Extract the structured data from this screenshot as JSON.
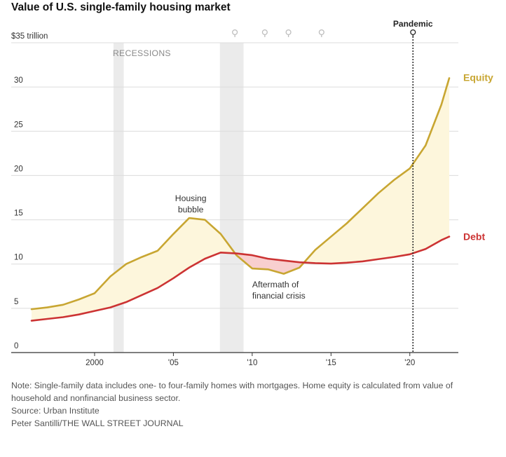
{
  "chart_data": {
    "type": "area",
    "title": "Value of U.S. single-family housing market",
    "y_unit": "$35 trillion",
    "x_range": [
      1996,
      2022.7
    ],
    "ylim": [
      0,
      35
    ],
    "y_ticks": [
      0,
      5,
      10,
      15,
      20,
      25,
      30
    ],
    "x_ticks": [
      2000,
      2005,
      2010,
      2015,
      2020
    ],
    "x_tick_labels": [
      "2000",
      "'05",
      "'10",
      "'15",
      "'20"
    ],
    "grid": true,
    "series": [
      {
        "name": "Equity",
        "color": "#c8a632",
        "x": [
          1996,
          1997,
          1998,
          1999,
          2000,
          2001,
          2002,
          2003,
          2004,
          2005,
          2006,
          2007,
          2008,
          2009,
          2010,
          2011,
          2012,
          2013,
          2014,
          2015,
          2016,
          2017,
          2018,
          2019,
          2020,
          2021,
          2022,
          2022.5
        ],
        "values": [
          4.9,
          5.1,
          5.4,
          6.0,
          6.7,
          8.6,
          10.0,
          10.8,
          11.5,
          13.4,
          15.2,
          15.0,
          13.4,
          11.0,
          9.5,
          9.4,
          8.9,
          9.6,
          11.6,
          13.1,
          14.6,
          16.3,
          18.0,
          19.5,
          20.8,
          23.4,
          28.0,
          31.0
        ]
      },
      {
        "name": "Debt",
        "color": "#cc3333",
        "x": [
          1996,
          1997,
          1998,
          1999,
          2000,
          2001,
          2002,
          2003,
          2004,
          2005,
          2006,
          2007,
          2008,
          2009,
          2010,
          2011,
          2012,
          2013,
          2014,
          2015,
          2016,
          2017,
          2018,
          2019,
          2020,
          2021,
          2022,
          2022.5
        ],
        "values": [
          3.6,
          3.8,
          4.0,
          4.3,
          4.7,
          5.1,
          5.7,
          6.5,
          7.3,
          8.4,
          9.6,
          10.6,
          11.3,
          11.2,
          11.0,
          10.6,
          10.4,
          10.2,
          10.1,
          10.05,
          10.15,
          10.3,
          10.55,
          10.8,
          11.1,
          11.7,
          12.7,
          13.1
        ]
      }
    ],
    "recessions": [
      {
        "start": 2001.2,
        "end": 2001.85
      },
      {
        "start": 2007.95,
        "end": 2009.45
      }
    ],
    "recessions_label": "RECESSIONS",
    "pandemic": {
      "x": 2020.2,
      "label": "Pandemic"
    },
    "event_markers_x": [
      2008.9,
      2010.8,
      2012.3,
      2014.4,
      2020.2
    ],
    "annotations": [
      {
        "id": "housing-bubble",
        "lines": [
          "Housing",
          "bubble"
        ]
      },
      {
        "id": "aftermath",
        "lines": [
          "Aftermath of",
          "financial crisis"
        ]
      }
    ],
    "equity_fill_color": "#fdf6dc",
    "debt_fill_color": "#f8cfcf"
  },
  "notes": {
    "note": "Note: Single-family data includes one- to four-family homes with mortgages. Home equity is calculated from value of household and nonfinancial business sector.",
    "source": "Source: Urban Institute",
    "credit": "Peter Santilli/THE WALL STREET JOURNAL"
  }
}
